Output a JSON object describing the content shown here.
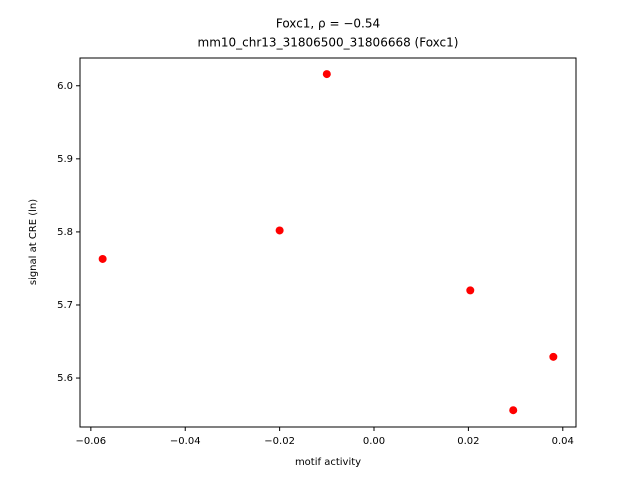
{
  "chart_data": {
    "type": "scatter",
    "title": "Foxc1, ρ = −0.54",
    "subtitle": "mm10_chr13_31806500_31806668 (Foxc1)",
    "x_label": "motif activity",
    "y_label": "signal at CRE (ln)",
    "color": "#ff0000",
    "x": [
      -0.0575,
      -0.02,
      -0.01,
      0.0204,
      0.0295,
      0.038
    ],
    "values": [
      5.763,
      5.802,
      6.016,
      5.72,
      5.556,
      5.629
    ],
    "xlim": [
      -0.0623,
      0.0428
    ],
    "ylim": [
      5.533,
      6.038
    ],
    "xticks": [
      {
        "value": -0.06,
        "label": "−0.06"
      },
      {
        "value": -0.04,
        "label": "−0.04"
      },
      {
        "value": -0.02,
        "label": "−0.02"
      },
      {
        "value": 0,
        "label": "0.00"
      },
      0.02,
      0.04
    ],
    "yticks": [
      5.6,
      5.7,
      5.8,
      5.9,
      {
        "value": 6,
        "label": "6.0"
      }
    ]
  }
}
